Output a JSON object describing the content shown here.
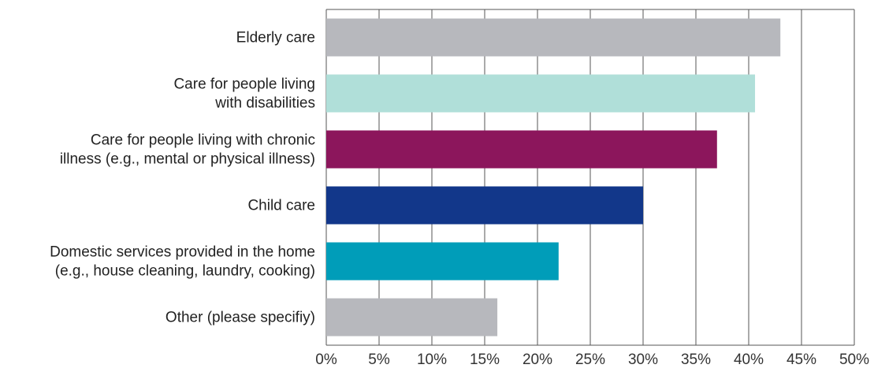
{
  "chart_data": {
    "type": "bar",
    "orientation": "horizontal",
    "categories": [
      [
        "Elderly care"
      ],
      [
        "Care for people living",
        "with disabilities"
      ],
      [
        "Care for people living with chronic",
        "illness (e.g., mental or physical illness)"
      ],
      [
        "Child care"
      ],
      [
        "Domestic services provided in the home",
        "(e.g., house cleaning, laundry, cooking)"
      ],
      [
        "Other (please specifiy)"
      ]
    ],
    "values": [
      43,
      40.6,
      37,
      30,
      22,
      16.2
    ],
    "colors": [
      "#b7b8bd",
      "#b0dfd9",
      "#8c165c",
      "#12378a",
      "#009db9",
      "#b7b8bd"
    ],
    "xlim": [
      0,
      50
    ],
    "xticks": [
      0,
      5,
      10,
      15,
      20,
      25,
      30,
      35,
      40,
      45,
      50
    ],
    "tick_format": "{v}%",
    "grid": "vertical",
    "title": "",
    "xlabel": "",
    "ylabel": ""
  }
}
